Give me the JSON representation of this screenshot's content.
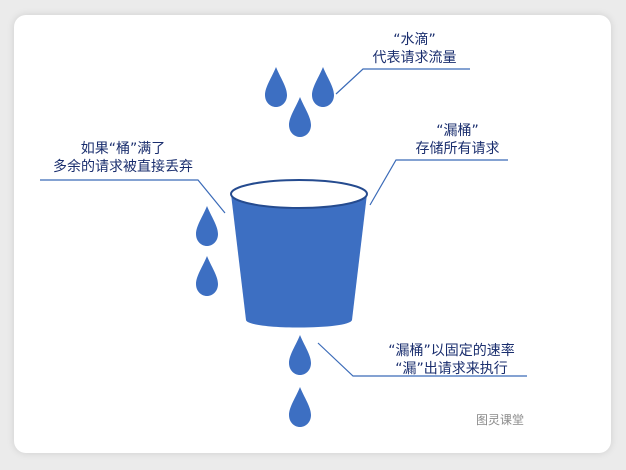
{
  "labels": {
    "drops": [
      "“水滴”",
      "代表请求流量"
    ],
    "bucket": [
      "“漏桶”",
      "存储所有请求"
    ],
    "overflow": [
      "如果“桶”满了",
      "多余的请求被直接丢弃"
    ],
    "leak": [
      "“漏桶”以固定的速率",
      "“漏”出请求来执行"
    ]
  },
  "brand": "图灵课堂",
  "colors": {
    "water": "#3d6fc2",
    "bucket_rim": "#254b8f",
    "leader": "#3b6bb8",
    "text": "#1a2e6e"
  }
}
